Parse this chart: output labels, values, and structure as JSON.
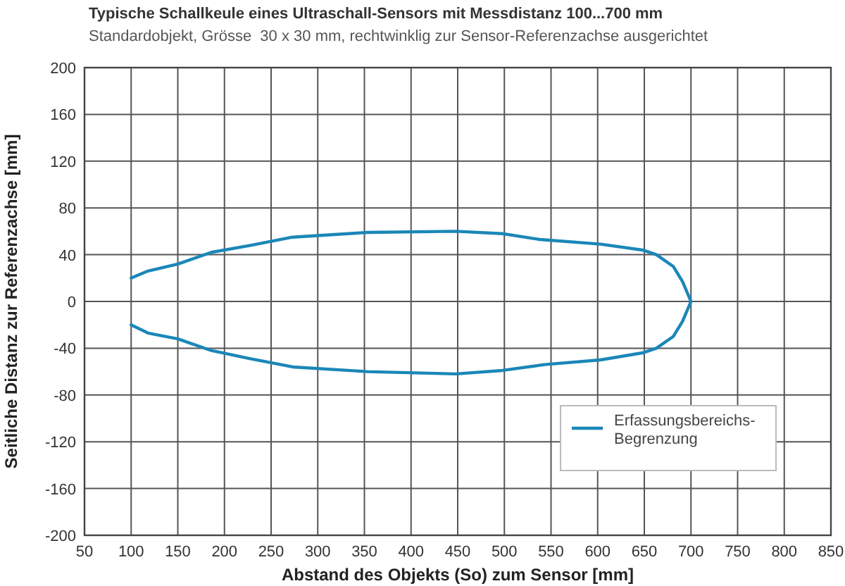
{
  "chart_data": {
    "type": "line",
    "title": "Typische Schallkeule eines Ultraschall-Sensors mit Messdistanz 100...700 mm",
    "subtitle": "Standardobjekt, Grösse  30 x 30 mm, rechtwinklig zur Sensor-Referenzachse ausgerichtet",
    "xlabel": "Abstand des Objekts (So) zum Sensor [mm]",
    "ylabel": "Seitliche Distanz zur Referenzachse [mm]",
    "series": [
      {
        "name": "Erfassungsbereichs-Begrenzung",
        "color": "#1a87b8",
        "x": [
          100,
          118,
          150,
          186,
          228,
          273,
          353,
          448,
          498,
          538,
          603,
          648,
          663,
          681,
          691,
          700,
          691,
          681,
          663,
          648,
          603,
          543,
          498,
          448,
          353,
          273,
          228,
          186,
          150,
          118,
          100
        ],
        "values": [
          20,
          26,
          32,
          42,
          48,
          55,
          59,
          60,
          58,
          53,
          49,
          44,
          40,
          30,
          17,
          0,
          -17,
          -30,
          -40,
          -44,
          -50,
          -54,
          -59,
          -62,
          -60,
          -56,
          -49,
          -42,
          -32,
          -27,
          -20
        ]
      }
    ],
    "xlim": [
      50,
      850
    ],
    "xticks": [
      50,
      100,
      150,
      200,
      250,
      300,
      350,
      400,
      450,
      500,
      550,
      600,
      650,
      700,
      750,
      800,
      850
    ],
    "ylim": [
      -200,
      200
    ],
    "yticks": [
      -200,
      -160,
      -120,
      -80,
      -40,
      0,
      40,
      80,
      120,
      160,
      200
    ],
    "grid": true,
    "legend": "bottom right",
    "marker": "none",
    "line_style": "solid"
  }
}
